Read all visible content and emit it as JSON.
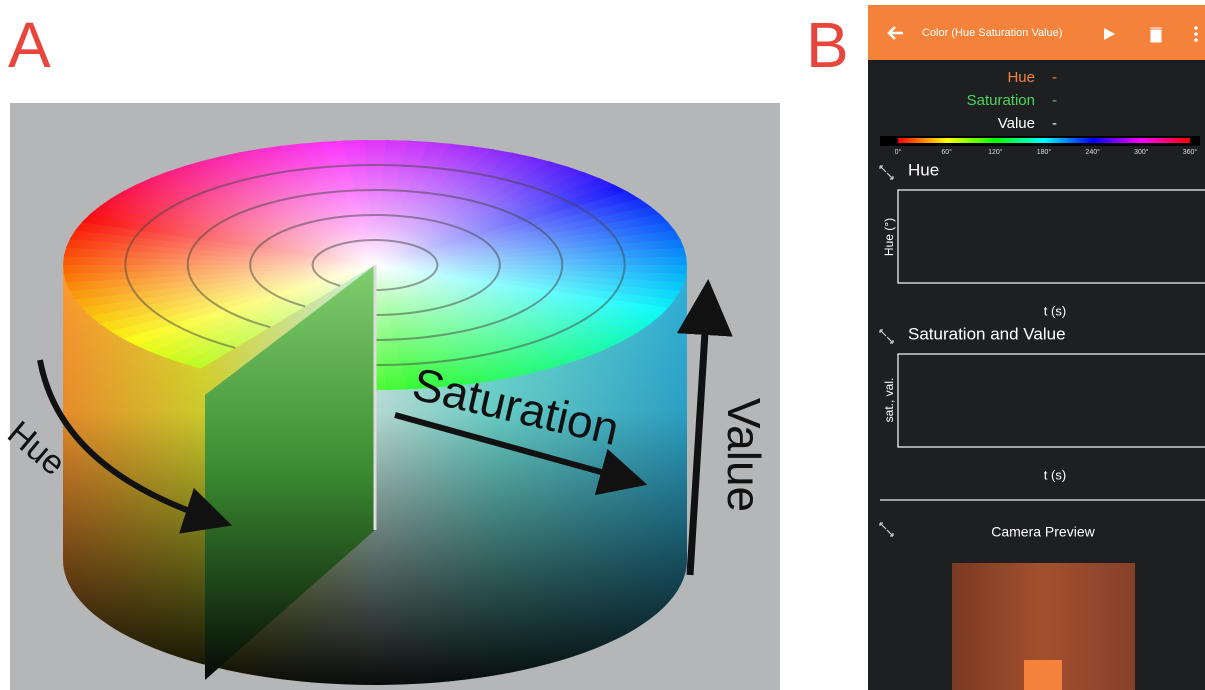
{
  "panels": {
    "a": {
      "label": "A",
      "illustration": {
        "hue": "Hue",
        "saturation": "Saturation",
        "value": "Value"
      }
    },
    "b": {
      "label": "B",
      "app_bar": {
        "title": "Color (Hue Saturation Value)"
      },
      "readouts": [
        {
          "label": "Hue",
          "value": "-"
        },
        {
          "label": "Saturation",
          "value": "-"
        },
        {
          "label": "Value",
          "value": "-"
        }
      ],
      "hue_scale": [
        "0°",
        "60°",
        "120°",
        "180°",
        "240°",
        "300°",
        "360°"
      ],
      "graphs": [
        {
          "title": "Hue",
          "y_label": "Hue (°)",
          "x_label": "t (s)"
        },
        {
          "title": "Saturation and Value",
          "y_label": "sat., val.",
          "x_label": "t (s)"
        }
      ],
      "camera": {
        "title": "Camera Preview"
      }
    }
  }
}
